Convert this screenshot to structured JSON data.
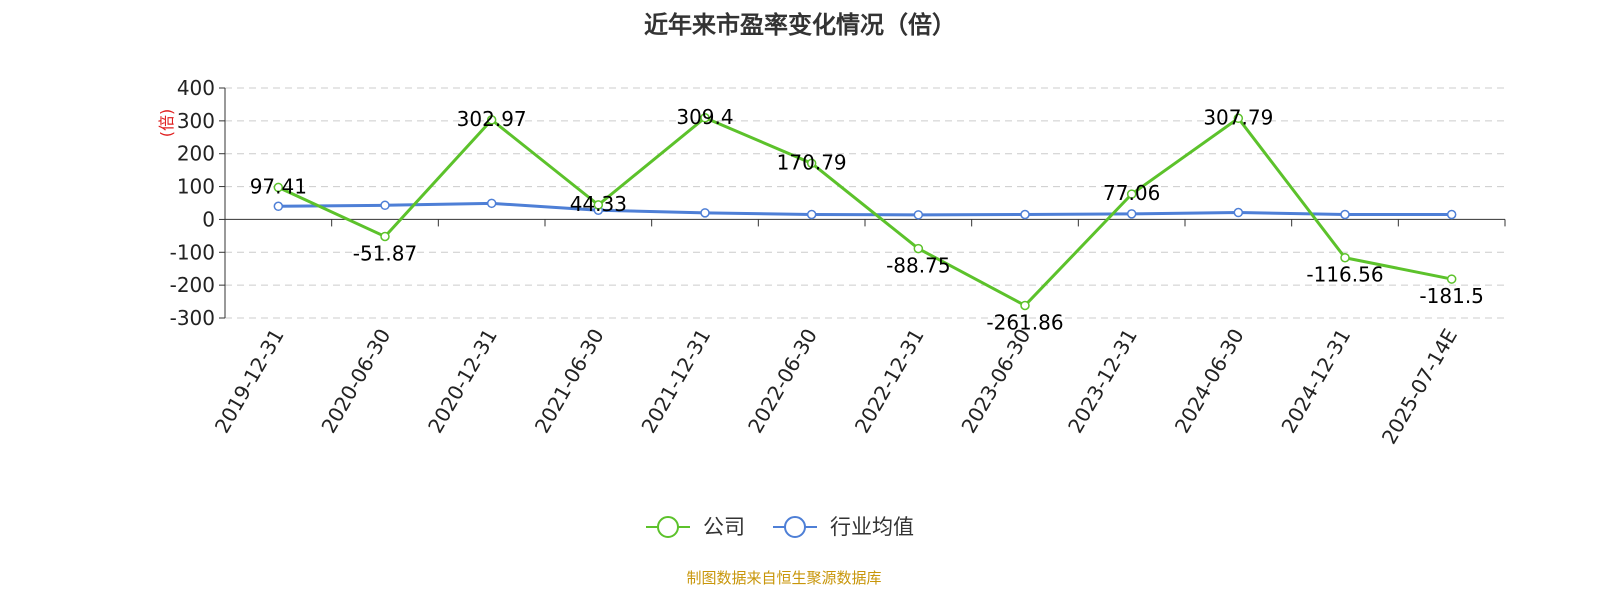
{
  "chart_data": {
    "type": "line",
    "title": "近年来市盈率变化情况（倍）",
    "ylabel": "(倍)",
    "x": [
      "2019-12-31",
      "2020-06-30",
      "2020-12-31",
      "2021-06-30",
      "2021-12-31",
      "2022-06-30",
      "2022-12-31",
      "2023-06-30",
      "2023-12-31",
      "2024-06-30",
      "2024-12-31",
      "2025-07-14E"
    ],
    "yticks": [
      "400",
      "300",
      "200",
      "100",
      "0",
      "-100",
      "-200",
      "-300"
    ],
    "ylim": [
      -300,
      400
    ],
    "grid": true,
    "legend_position": "bottom",
    "series": [
      {
        "name": "公司",
        "color": "#5cc22b",
        "values": [
          97.41,
          -51.87,
          302.97,
          44.33,
          309.4,
          170.79,
          -88.75,
          -261.86,
          77.06,
          307.79,
          -116.56,
          -181.5
        ],
        "labels": [
          "97.41",
          "-51.87",
          "302.97",
          "44.33",
          "309.4",
          "170.79",
          "-88.75",
          "-261.86",
          "77.06",
          "307.79",
          "-116.56",
          "-181.5"
        ]
      },
      {
        "name": "行业均值",
        "color": "#4e7fd6",
        "values": [
          40,
          43,
          49,
          28,
          20,
          15,
          14,
          15,
          17,
          21,
          15,
          15
        ]
      }
    ]
  },
  "source_note": "制图数据来自恒生聚源数据库",
  "colors": {
    "unit_label": "#e02020",
    "source_note": "#c8960a",
    "axis": "#333333",
    "grid": "#cccccc"
  }
}
